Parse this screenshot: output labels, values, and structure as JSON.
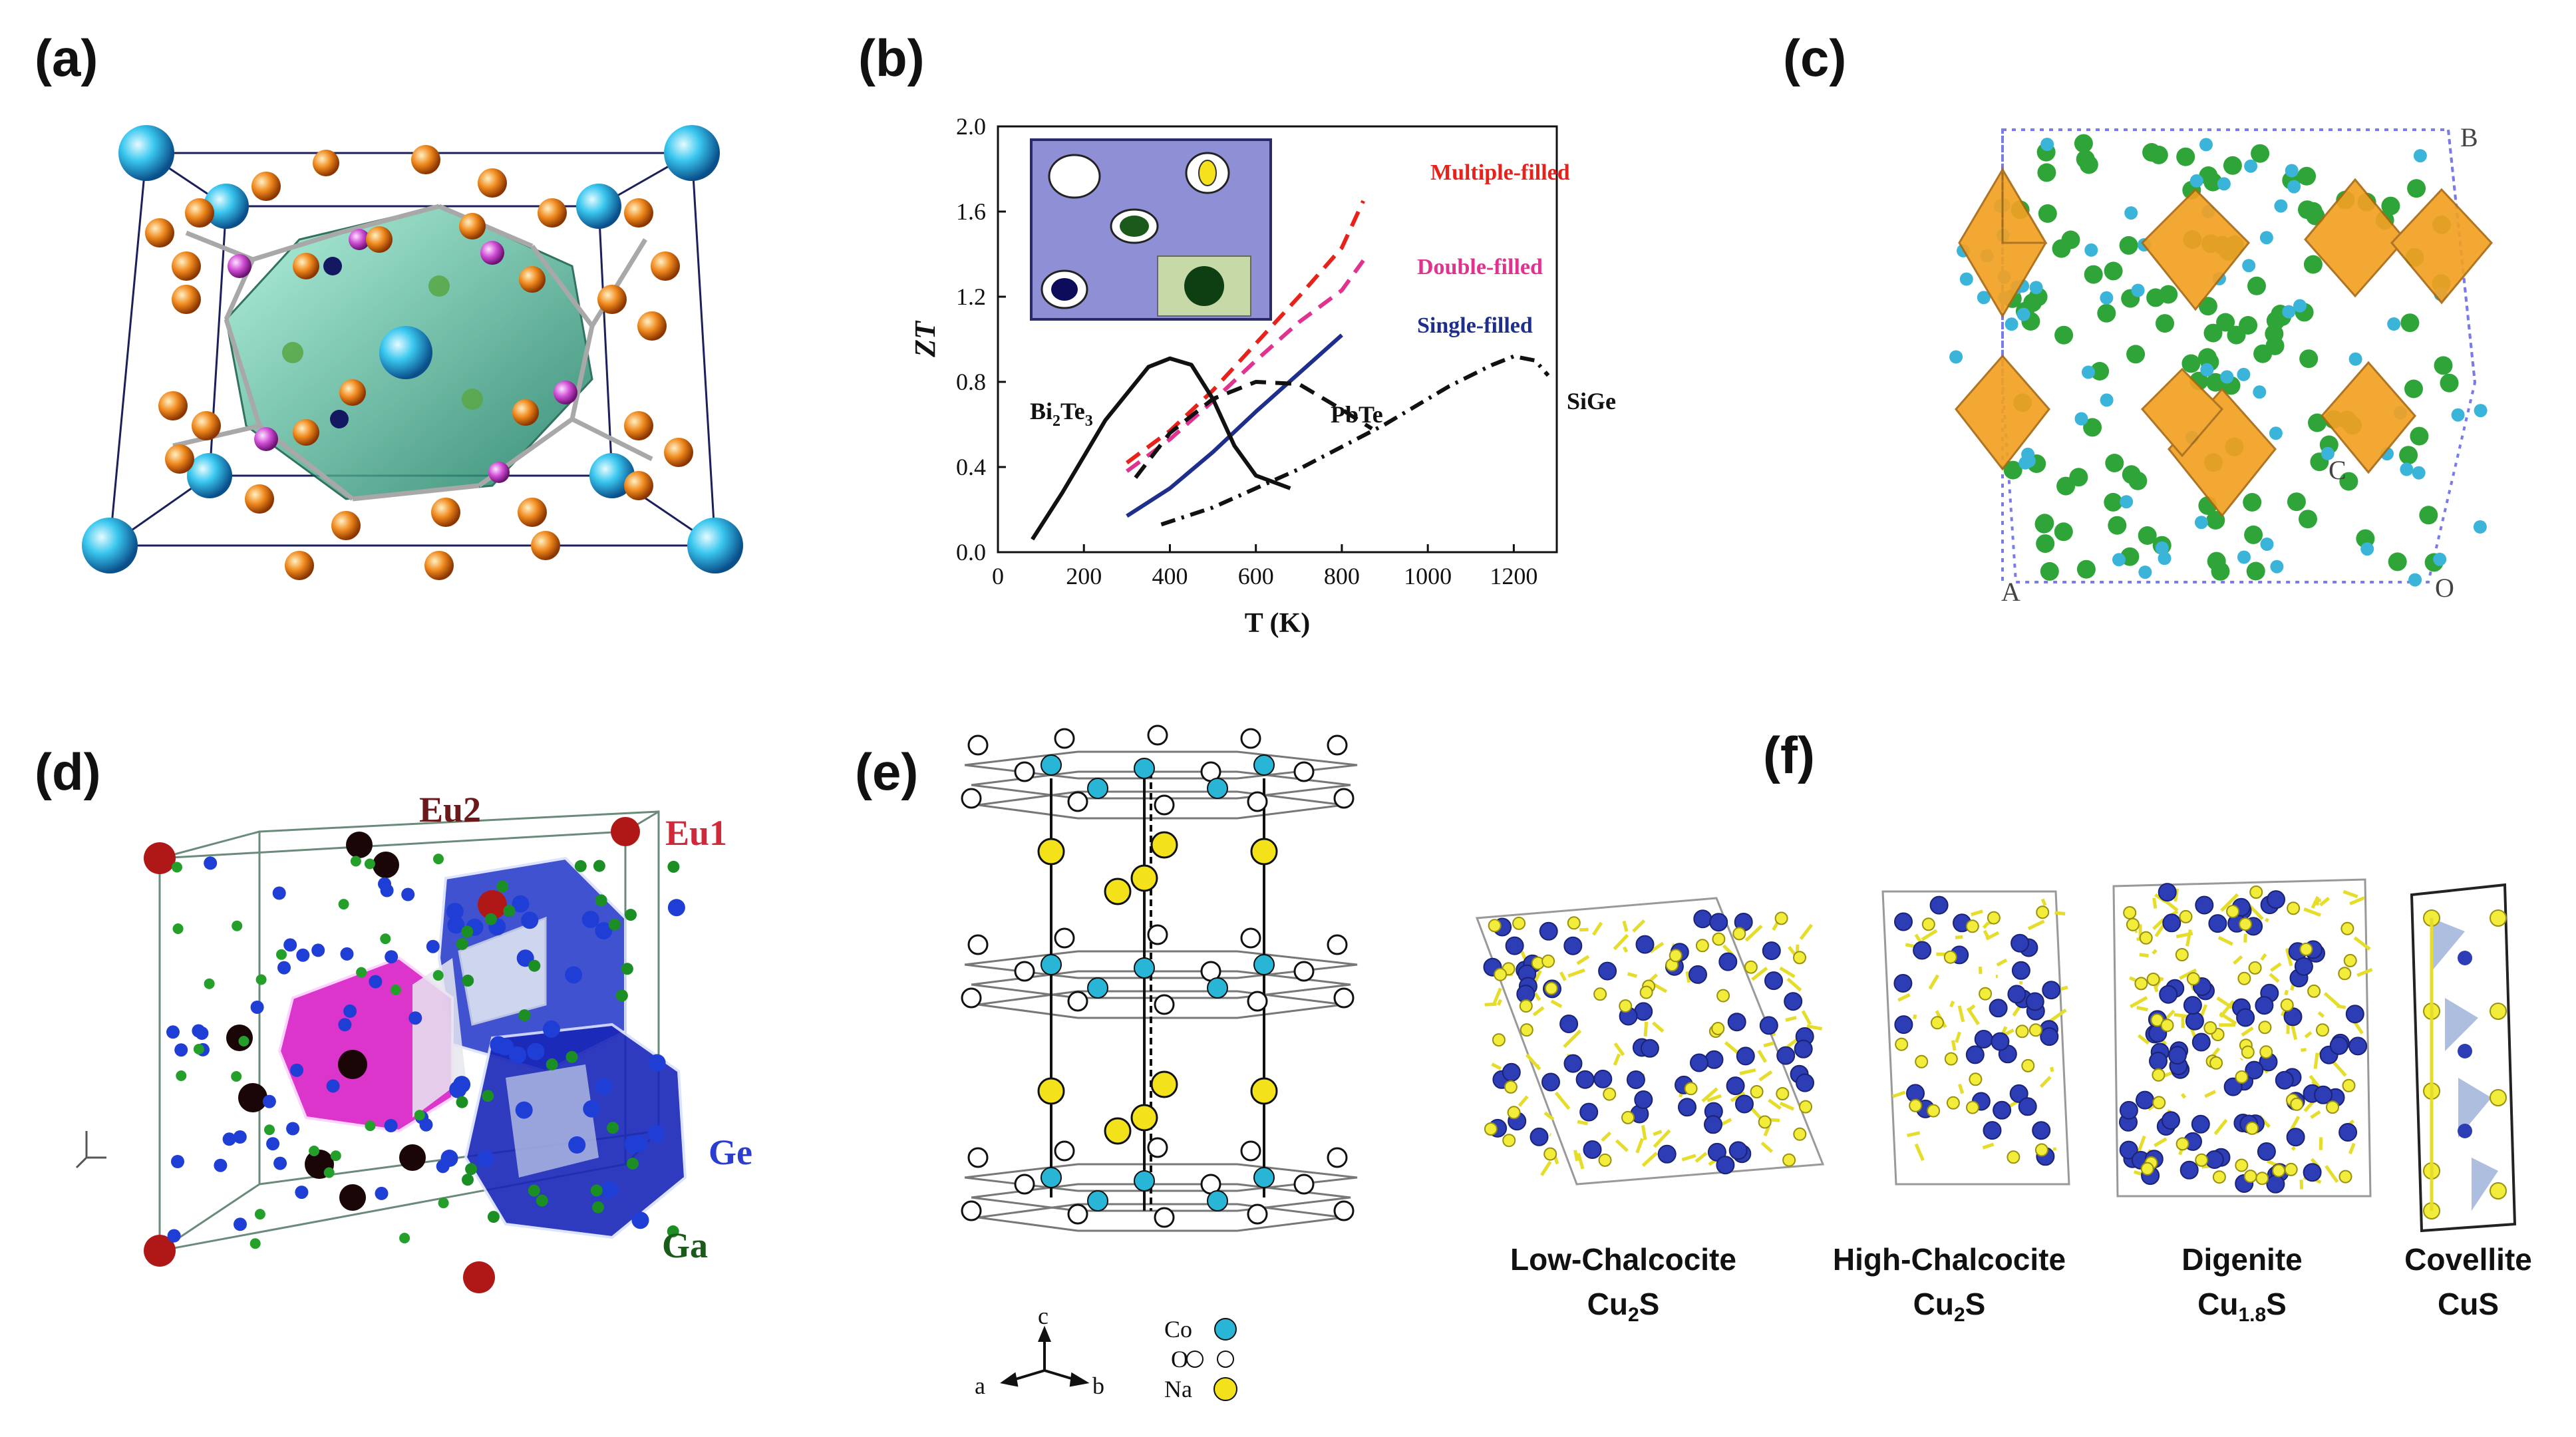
{
  "panels": {
    "a": "(a)",
    "b": "(b)",
    "c": "(c)",
    "d": "(d)",
    "e": "(e)",
    "f": "(f)"
  },
  "panel_c_labels": {
    "corner_b": "B",
    "corner_c": "C",
    "corner_a": "A",
    "corner_o": "O"
  },
  "panel_d_labels": {
    "eu2": "Eu2",
    "eu1": "Eu1",
    "ge": "Ge",
    "ga": "Ga"
  },
  "panel_e_legend": {
    "axis_c": "c",
    "axis_a": "a",
    "axis_b": "b",
    "items": [
      {
        "label": "Co",
        "color": "#29b6d6"
      },
      {
        "label": "O",
        "color": "#ffffff"
      },
      {
        "label": "Na",
        "color": "#f3e21a"
      }
    ]
  },
  "panel_f_structures": [
    {
      "name": "Low-Chalcocite",
      "formula_main": "Cu",
      "formula_sub": "2",
      "formula_tail": "S"
    },
    {
      "name": "High-Chalcocite",
      "formula_main": "Cu",
      "formula_sub": "2",
      "formula_tail": "S"
    },
    {
      "name": "Digenite",
      "formula_main": "Cu",
      "formula_sub": "1.8",
      "formula_tail": "S"
    },
    {
      "name": "Covellite",
      "formula_main": "CuS",
      "formula_sub": "",
      "formula_tail": ""
    }
  ],
  "chart_data": {
    "type": "line",
    "xlabel": "T (K)",
    "ylabel": "ZT",
    "xlim": [
      0,
      1300
    ],
    "ylim": [
      0,
      2.0
    ],
    "xticks": [
      0,
      200,
      400,
      600,
      800,
      1000,
      1200
    ],
    "yticks": [
      0.0,
      0.4,
      0.8,
      1.2,
      1.6,
      2.0
    ],
    "ytick_labels": [
      "0.0",
      "0.4",
      "0.8",
      "1.2",
      "1.6",
      "2.0"
    ],
    "series": [
      {
        "name": "Multiple-filled",
        "color": "#e8211b",
        "dash": "dash",
        "x": [
          300,
          400,
          500,
          600,
          700,
          800,
          850
        ],
        "y": [
          0.42,
          0.57,
          0.76,
          0.98,
          1.2,
          1.43,
          1.65
        ]
      },
      {
        "name": "Double-filled",
        "color": "#e0338f",
        "dash": "dash",
        "x": [
          300,
          400,
          500,
          600,
          700,
          800,
          850
        ],
        "y": [
          0.38,
          0.53,
          0.71,
          0.9,
          1.08,
          1.23,
          1.37
        ]
      },
      {
        "name": "Single-filled",
        "color": "#1e2e8c",
        "dash": "solid",
        "x": [
          300,
          400,
          500,
          600,
          700,
          800
        ],
        "y": [
          0.17,
          0.3,
          0.47,
          0.66,
          0.84,
          1.02
        ]
      },
      {
        "name": "Bi2Te3",
        "color": "#111111",
        "dash": "solid",
        "x": [
          80,
          150,
          250,
          350,
          400,
          450,
          500,
          550,
          600,
          680
        ],
        "y": [
          0.06,
          0.28,
          0.62,
          0.87,
          0.91,
          0.88,
          0.72,
          0.5,
          0.36,
          0.3
        ]
      },
      {
        "name": "PbTe",
        "color": "#111111",
        "dash": "dash",
        "x": [
          320,
          400,
          500,
          600,
          700,
          800,
          870
        ],
        "y": [
          0.35,
          0.56,
          0.72,
          0.8,
          0.79,
          0.67,
          0.58
        ]
      },
      {
        "name": "SiGe",
        "color": "#111111",
        "dash": "dashdot",
        "x": [
          380,
          500,
          700,
          900,
          1050,
          1150,
          1200,
          1250,
          1280
        ],
        "y": [
          0.13,
          0.21,
          0.39,
          0.6,
          0.78,
          0.88,
          0.92,
          0.9,
          0.83
        ]
      }
    ],
    "labels": {
      "multiple": "Multiple-filled",
      "double": "Double-filled",
      "single": "Single-filled",
      "bi_main": "Bi",
      "bi_sub1": "2",
      "bi_mid": "Te",
      "bi_sub2": "3",
      "pbte": "PbTe",
      "sige": "SiGe"
    }
  }
}
